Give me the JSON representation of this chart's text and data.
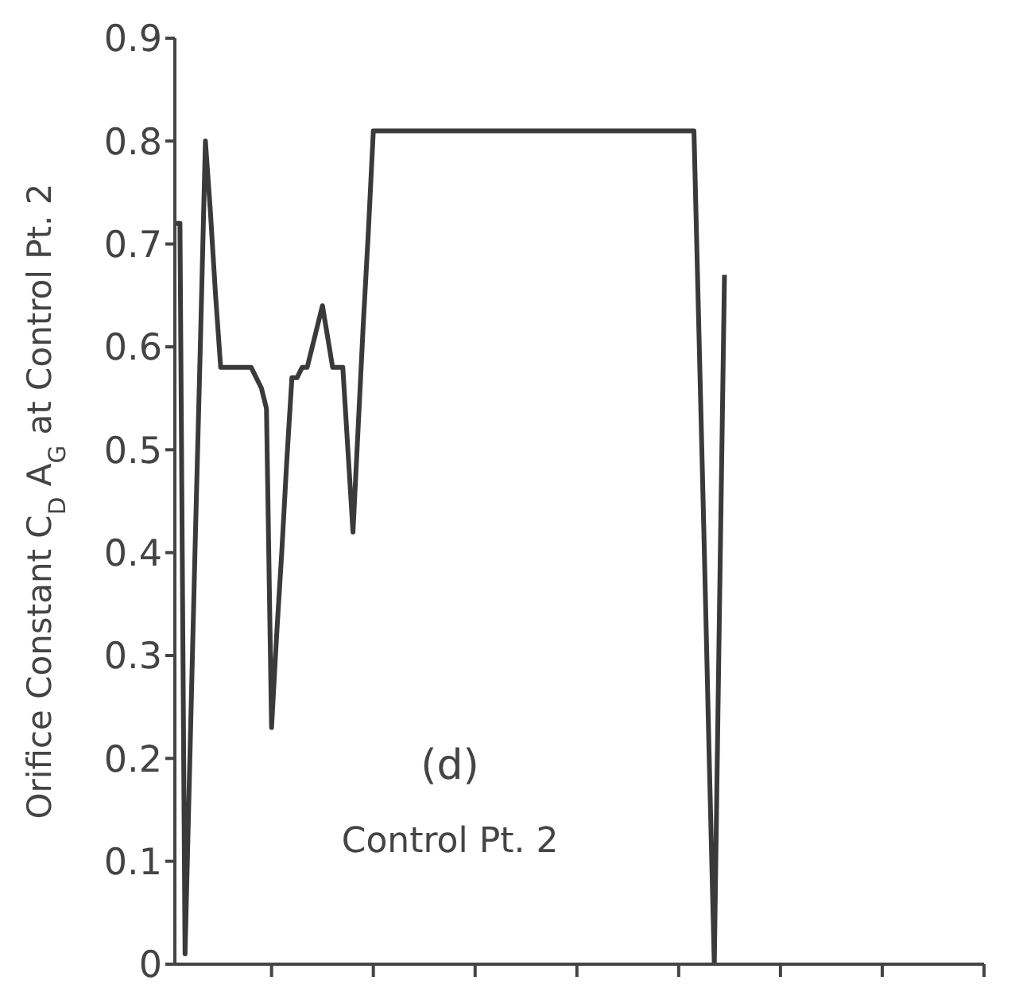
{
  "chart_data": {
    "type": "line",
    "ylabel": "Orifice Constant C$_{D}$ A$_{G}$ at Control Pt. 2",
    "annotations": [
      "(d)",
      "Control Pt. 2"
    ],
    "categories": [
      null,
      null,
      null,
      null,
      null,
      null,
      null,
      null,
      null,
      null,
      null,
      null,
      null,
      null,
      null,
      null,
      null,
      null,
      null,
      null,
      null,
      null,
      null,
      null,
      null,
      null,
      null,
      null,
      null,
      null,
      null,
      null,
      null,
      null,
      null,
      null,
      null,
      null,
      null,
      null,
      null,
      null,
      null,
      null,
      null,
      null,
      null,
      null,
      null,
      null,
      null,
      null,
      null,
      null,
      null,
      null,
      null,
      null,
      null,
      null,
      null,
      null,
      null,
      null,
      null,
      null,
      null,
      null,
      null,
      null,
      null,
      null,
      null,
      null,
      null,
      null,
      null,
      null,
      null,
      null,
      null,
      null,
      null,
      null,
      null,
      null,
      null,
      null,
      null,
      null,
      null,
      null,
      null,
      null,
      null,
      null,
      null,
      null,
      null,
      null,
      null,
      null,
      null,
      null,
      null,
      null,
      null,
      null,
      null,
      null,
      null,
      null,
      null,
      null,
      null,
      null,
      null,
      null,
      null,
      null,
      null,
      null,
      null,
      null,
      null,
      null,
      null,
      null,
      null,
      null,
      null,
      null,
      null,
      null,
      null,
      null,
      null,
      null,
      null,
      null,
      null,
      null,
      null,
      null,
      null,
      null,
      null,
      null,
      null,
      null,
      null,
      null,
      null,
      null,
      null,
      null,
      null,
      null,
      null,
      null
    ],
    "series": [
      {
        "color": "#3a3a3a",
        "values": [
          0.72,
          0.72,
          0.01,
          0.21,
          0.41,
          0.6,
          0.8,
          0.73,
          0.65,
          0.58,
          0.58,
          0.58,
          0.58,
          0.58,
          0.58,
          0.58,
          0.57,
          0.56,
          0.54,
          0.23,
          0.32,
          0.4,
          0.49,
          0.57,
          0.57,
          0.58,
          0.58,
          0.6,
          0.62,
          0.64,
          0.61,
          0.58,
          0.58,
          0.58,
          0.5,
          0.42,
          0.52,
          0.62,
          0.71,
          0.81,
          0.81,
          0.81,
          0.81,
          0.81,
          0.81,
          0.81,
          0.81,
          0.81,
          0.81,
          0.81,
          0.81,
          0.81,
          0.81,
          0.81,
          0.81,
          0.81,
          0.81,
          0.81,
          0.81,
          0.81,
          0.81,
          0.81,
          0.81,
          0.81,
          0.81,
          0.81,
          0.81,
          0.81,
          0.81,
          0.81,
          0.81,
          0.81,
          0.81,
          0.81,
          0.81,
          0.81,
          0.81,
          0.81,
          0.81,
          0.81,
          0.81,
          0.81,
          0.81,
          0.81,
          0.81,
          0.81,
          0.81,
          0.81,
          0.81,
          0.81,
          0.81,
          0.81,
          0.81,
          0.81,
          0.81,
          0.81,
          0.81,
          0.81,
          0.81,
          0.81,
          0.81,
          0.81,
          0.81,
          0.61,
          0.41,
          0.2,
          0,
          0.34,
          0.67,
          null,
          null,
          null,
          null,
          null,
          null,
          null,
          null,
          null,
          null,
          null,
          null,
          null,
          null,
          null,
          null,
          null,
          null,
          null,
          null,
          null,
          null,
          null,
          null,
          null,
          null,
          null,
          null,
          null,
          null,
          null,
          null,
          null,
          null,
          null,
          null,
          null,
          null,
          null,
          null,
          null,
          null,
          null,
          null,
          null,
          null,
          null,
          null,
          null,
          null,
          null
        ]
      }
    ],
    "ylim": [
      0,
      0.9
    ],
    "yticks": [
      0,
      0.1,
      0.2,
      0.3,
      0.4,
      0.5,
      0.6,
      0.7,
      0.8,
      0.9
    ],
    "tick_labels": "y",
    "marker": "none",
    "line_style": "solid"
  }
}
